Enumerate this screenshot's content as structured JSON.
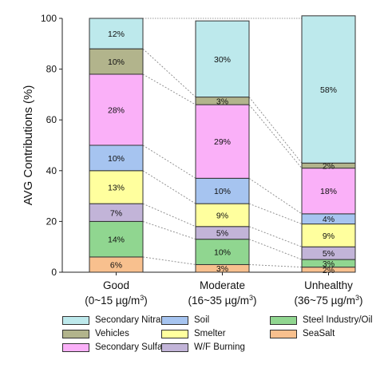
{
  "chart_data": {
    "type": "bar",
    "stacked": true,
    "ylabel": "AVG Contributions (%)",
    "ylim": [
      0,
      100
    ],
    "yticks": [
      "0",
      "20",
      "40",
      "60",
      "80",
      "100"
    ],
    "categories": [
      {
        "name": "Good",
        "range": "(0~15 µg/m",
        "sup": "3",
        "close": ")"
      },
      {
        "name": "Moderate",
        "range": "(16~35 µg/m",
        "sup": "3",
        "close": ")"
      },
      {
        "name": "Unhealthy",
        "range": "(36~75 µg/m",
        "sup": "3",
        "close": ")"
      }
    ],
    "series": [
      {
        "name": "SeaSalt",
        "color": "#f8c08e",
        "values": [
          6,
          3,
          2
        ],
        "labels": [
          "6%",
          "3%",
          "2%"
        ]
      },
      {
        "name": "Steel Industry/Oil",
        "color": "#90d690",
        "values": [
          14,
          10,
          3
        ],
        "labels": [
          "14%",
          "10%",
          "3%"
        ]
      },
      {
        "name": "W/F Burning",
        "color": "#c2b4d8",
        "values": [
          7,
          5,
          5
        ],
        "labels": [
          "7%",
          "5%",
          "5%"
        ]
      },
      {
        "name": "Smelter",
        "color": "#ffff9e",
        "values": [
          13,
          9,
          9
        ],
        "labels": [
          "13%",
          "9%",
          "9%"
        ]
      },
      {
        "name": "Soil",
        "color": "#a6c4f0",
        "values": [
          10,
          10,
          4
        ],
        "labels": [
          "10%",
          "10%",
          "4%"
        ]
      },
      {
        "name": "Secondary Sulfate",
        "color": "#fab0f8",
        "values": [
          28,
          29,
          18
        ],
        "labels": [
          "28%",
          "29%",
          "18%"
        ]
      },
      {
        "name": "Vehicles",
        "color": "#b2b48c",
        "values": [
          10,
          3,
          2
        ],
        "labels": [
          "10%",
          "3%",
          "2%"
        ]
      },
      {
        "name": "Secondary Nitrate",
        "color": "#bde9ec",
        "values": [
          12,
          30,
          58
        ],
        "labels": [
          "12%",
          "30%",
          "58%"
        ]
      }
    ],
    "legend_order": [
      "Secondary Nitrate",
      "Soil",
      "Steel Industry/Oil",
      "Vehicles",
      "Smelter",
      "SeaSalt",
      "Secondary Sulfate",
      "W/F Burning"
    ],
    "grid": false,
    "legend_position": "bottom"
  }
}
